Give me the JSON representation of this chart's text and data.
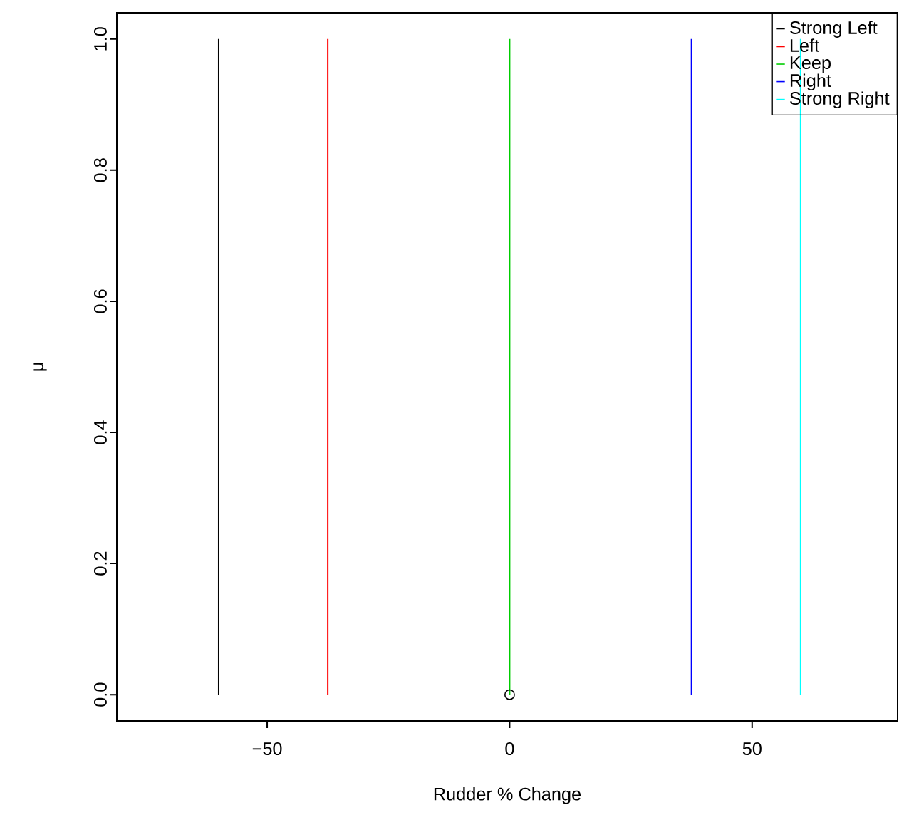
{
  "chart_data": {
    "type": "line",
    "xlabel": "Rudder % Change",
    "ylabel": "μ",
    "xlim": [
      -81,
      80
    ],
    "ylim": [
      -0.04,
      1.04
    ],
    "xticks": [
      {
        "value": -50,
        "label": "−50"
      },
      0,
      50
    ],
    "yticks": [
      {
        "value": 0,
        "label": "0.0"
      },
      {
        "value": 0.2,
        "label": "0.2"
      },
      {
        "value": 0.4,
        "label": "0.4"
      },
      {
        "value": 0.6,
        "label": "0.6"
      },
      {
        "value": 0.8,
        "label": "0.8"
      },
      {
        "value": 1,
        "label": "1.0"
      }
    ],
    "legend": "top right",
    "series": [
      {
        "name": "Strong Left",
        "color": "#000000",
        "x": [
          -60,
          -60
        ],
        "values": [
          0,
          1
        ]
      },
      {
        "name": "Left",
        "color": "#ff0000",
        "x": [
          -37.5,
          -37.5
        ],
        "values": [
          0,
          1
        ]
      },
      {
        "name": "Keep",
        "color": "#00cd00",
        "x": [
          0,
          0
        ],
        "values": [
          0,
          1
        ]
      },
      {
        "name": "Right",
        "color": "#0000ff",
        "x": [
          37.5,
          37.5
        ],
        "values": [
          0,
          1
        ]
      },
      {
        "name": "Strong Right",
        "color": "#00ffff",
        "x": [
          60,
          60
        ],
        "values": [
          0,
          1
        ]
      },
      {
        "type": "scatter",
        "marker": "circle",
        "color": "#000000",
        "x": [
          0
        ],
        "values": [
          0
        ]
      }
    ]
  }
}
